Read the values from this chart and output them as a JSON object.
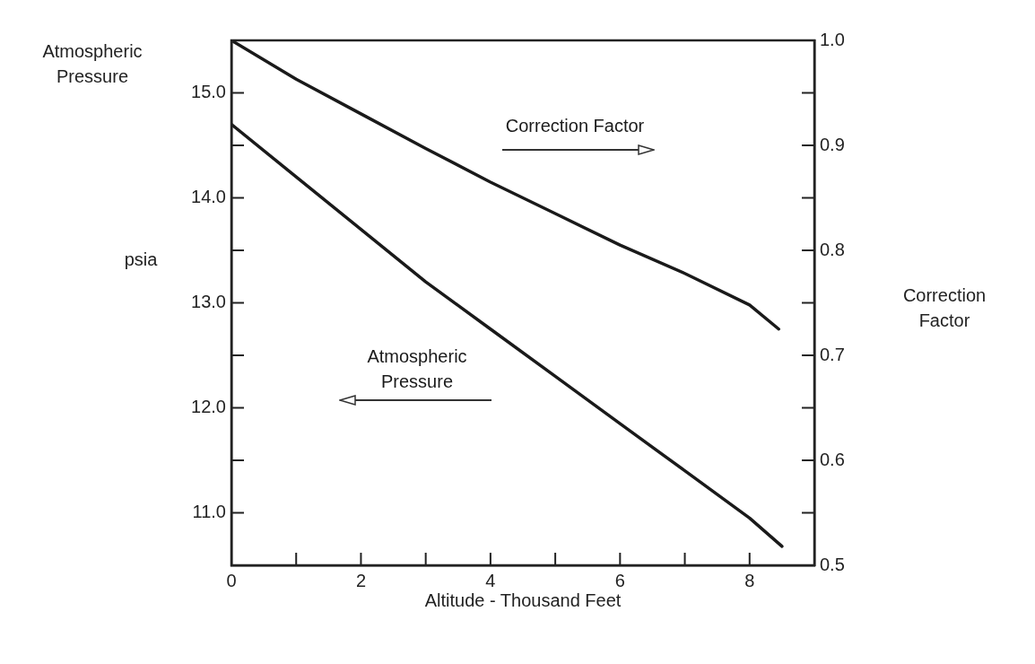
{
  "chart_data": {
    "type": "line",
    "xlabel": "Altitude - Thousand Feet",
    "ylabel": "Atmospheric Pressure",
    "y2label": "Correction Factor",
    "annotations": [
      "psia"
    ],
    "x": [
      0,
      1,
      2,
      3,
      4,
      5,
      6,
      7,
      8,
      8.5
    ],
    "series": [
      {
        "name": "Correction Factor",
        "color": "#1a1a1a",
        "axis": "y2",
        "x": [
          0,
          1,
          2,
          3,
          4,
          5,
          6,
          7,
          8,
          8.45
        ],
        "values": [
          1.0,
          0.963,
          0.93,
          0.897,
          0.865,
          0.835,
          0.805,
          0.778,
          0.748,
          0.725
        ]
      },
      {
        "name": "Atmospheric Pressure",
        "color": "#1a1a1a",
        "values": [
          14.7,
          14.2,
          13.7,
          13.2,
          12.75,
          12.3,
          11.85,
          11.4,
          10.95,
          10.68
        ]
      }
    ],
    "xlim": [
      0,
      9
    ],
    "xticks": [
      0,
      {
        "value": 1,
        "label": null
      },
      2,
      {
        "value": 3,
        "label": null
      },
      4,
      {
        "value": 5,
        "label": null
      },
      6,
      {
        "value": 7,
        "label": null
      },
      8
    ],
    "ylim": [
      10.5,
      15.5
    ],
    "yticks": [
      {
        "value": 11,
        "label": "11.0"
      },
      {
        "value": 11.5,
        "label": null
      },
      {
        "value": 12,
        "label": "12.0"
      },
      {
        "value": 12.5,
        "label": null
      },
      {
        "value": 13,
        "label": "13.0"
      },
      {
        "value": 13.5,
        "label": null
      },
      {
        "value": 14,
        "label": "14.0"
      },
      {
        "value": 14.5,
        "label": null
      },
      {
        "value": 15,
        "label": "15.0"
      }
    ],
    "y2lim": [
      0.5,
      1.0
    ],
    "y2ticks": [
      0.5,
      {
        "value": 0.55,
        "label": null
      },
      0.6,
      {
        "value": 0.65,
        "label": null
      },
      0.7,
      {
        "value": 0.75,
        "label": null
      },
      0.8,
      {
        "value": 0.85,
        "label": null
      },
      0.9,
      {
        "value": 0.95,
        "label": null
      },
      {
        "value": 1.0,
        "label": "1.0"
      }
    ],
    "grid": false,
    "legend": false,
    "marker": "none",
    "line_style": "solid"
  }
}
